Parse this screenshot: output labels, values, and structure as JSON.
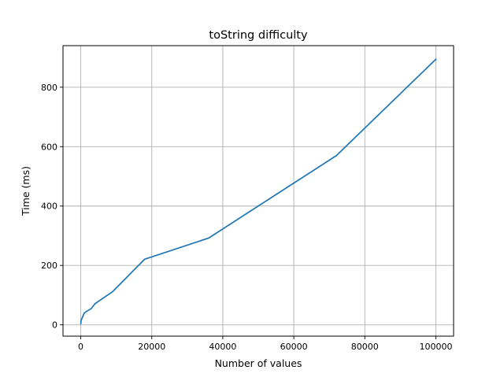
{
  "chart_data": {
    "type": "line",
    "title": "toString difficulty",
    "xlabel": "Number of values",
    "ylabel": "Time (ms)",
    "xlim": [
      -5000,
      105000
    ],
    "ylim": [
      -38,
      940
    ],
    "xticks": [
      0,
      20000,
      40000,
      60000,
      80000,
      100000
    ],
    "yticks": [
      0,
      200,
      400,
      600,
      800
    ],
    "grid": true,
    "series": [
      {
        "color": "#1f77b4",
        "x": [
          10,
          100,
          1000,
          2000,
          3000,
          4000,
          9000,
          18000,
          36000,
          72000,
          100000
        ],
        "y": [
          4,
          15,
          40,
          48,
          55,
          71,
          112,
          221,
          292,
          570,
          894
        ]
      }
    ]
  }
}
